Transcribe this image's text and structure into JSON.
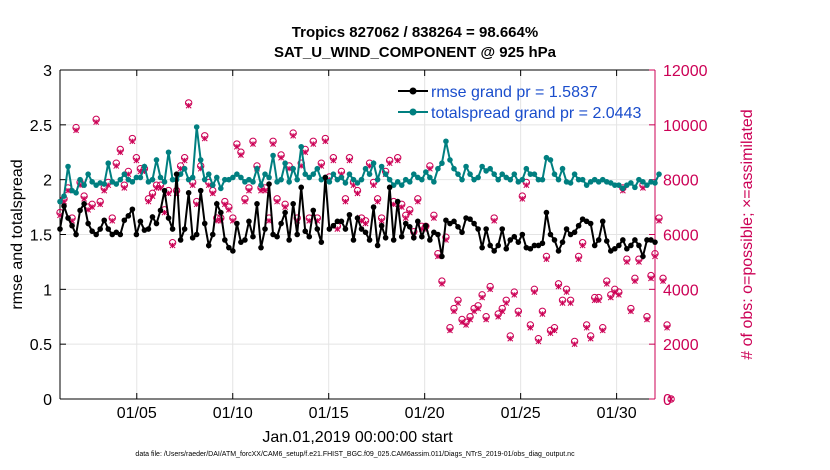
{
  "chart_data": {
    "type": "line",
    "title_line1": "Tropics 827062 / 838264 = 98.664%",
    "title_line2": "SAT_U_WIND_COMPONENT @ 925 hPa",
    "xlabel": "Jan.01,2019 00:00:00 start",
    "ylabel_left": "rmse and totalspread",
    "ylabel_right": "# of obs: o=possible; ×=assimilated",
    "xlim": [
      1,
      32
    ],
    "ylim_left": [
      0,
      3
    ],
    "ylim_right": [
      0,
      12000
    ],
    "x_ticks": [
      5,
      10,
      15,
      20,
      25,
      30
    ],
    "x_tick_labels": [
      "01/05",
      "01/10",
      "01/15",
      "01/20",
      "01/25",
      "01/30"
    ],
    "y_ticks_left": [
      "0",
      "0.5",
      "1",
      "1.5",
      "2",
      "2.5",
      "3"
    ],
    "y_ticks_right": [
      "0",
      "2000",
      "4000",
      "6000",
      "8000",
      "10000",
      "12000"
    ],
    "grid": true,
    "legend_position": "top-right",
    "colors": {
      "rmse": "#000000",
      "spread": "#007f80",
      "obs": "#cc0055"
    },
    "series": [
      {
        "name": "rmse grand pr = 1.5837",
        "axis": "left",
        "values": [
          1.55,
          1.76,
          1.65,
          1.58,
          1.5,
          1.72,
          1.78,
          1.6,
          1.53,
          1.5,
          1.55,
          1.63,
          1.55,
          1.5,
          1.52,
          1.5,
          1.63,
          1.67,
          1.73,
          1.5,
          1.62,
          1.54,
          1.55,
          1.66,
          1.6,
          1.72,
          1.9,
          1.65,
          1.55,
          2.05,
          1.45,
          1.55,
          1.88,
          1.47,
          1.5,
          1.9,
          1.6,
          1.4,
          1.5,
          1.78,
          1.7,
          1.45,
          1.38,
          1.35,
          1.6,
          1.43,
          1.45,
          1.62,
          1.48,
          1.78,
          1.38,
          1.55,
          1.96,
          1.5,
          1.48,
          1.6,
          1.7,
          1.45,
          1.78,
          1.5,
          1.93,
          1.53,
          1.48,
          1.72,
          1.55,
          1.43,
          2.02,
          1.55,
          1.58,
          1.62,
          1.62,
          1.55,
          1.68,
          1.45,
          1.65,
          1.55,
          1.52,
          1.45,
          1.75,
          1.4,
          1.58,
          1.47,
          1.93,
          1.45,
          1.8,
          1.48,
          1.6,
          1.57,
          1.47,
          1.62,
          1.48,
          1.58,
          1.45,
          1.52,
          1.5,
          1.3,
          1.63,
          1.6,
          1.62,
          1.57,
          1.52,
          1.65,
          1.64,
          1.6,
          1.55,
          1.38,
          1.55,
          1.4,
          1.35,
          1.4,
          1.55,
          1.37,
          1.45,
          1.48,
          1.43,
          1.5,
          1.38,
          1.37,
          1.4,
          1.4,
          1.42,
          1.7,
          1.5,
          1.45,
          1.35,
          1.43,
          1.55,
          1.5,
          1.52,
          1.58,
          1.64,
          1.62,
          1.6,
          1.4,
          1.45,
          1.62,
          1.44,
          1.35,
          1.37,
          1.4,
          1.45,
          1.37,
          1.4,
          1.45,
          1.4,
          1.3,
          1.45,
          1.45,
          1.43
        ]
      },
      {
        "name": "totalspread grand pr = 2.0443",
        "axis": "left",
        "values": [
          1.8,
          1.85,
          2.12,
          1.9,
          1.88,
          2.0,
          1.95,
          2.05,
          1.98,
          1.95,
          1.97,
          1.96,
          2.15,
          1.98,
          1.96,
          2.0,
          2.05,
          2.0,
          1.98,
          2.02,
          2.02,
          2.12,
          1.98,
          2.0,
          2.18,
          2.02,
          1.98,
          2.25,
          2.0,
          2.0,
          2.05,
          2.1,
          2.0,
          2.02,
          2.48,
          2.18,
          2.0,
          2.05,
          1.95,
          2.02,
          1.92,
          2.0,
          2.0,
          2.02,
          2.05,
          2.02,
          1.98,
          2.0,
          1.98,
          2.1,
          1.95,
          2.05,
          2.02,
          2.22,
          1.98,
          2.0,
          2.15,
          1.98,
          2.1,
          2.0,
          2.3,
          2.05,
          2.02,
          2.05,
          2.1,
          2.0,
          2.02,
          1.98,
          2.05,
          2.0,
          2.02,
          1.97,
          2.05,
          2.0,
          1.97,
          2.0,
          2.1,
          2.05,
          2.15,
          2.0,
          2.12,
          2.05,
          2.0,
          1.95,
          1.98,
          1.95,
          2.0,
          1.98,
          2.05,
          2.02,
          2.0,
          2.07,
          2.02,
          1.98,
          2.1,
          2.15,
          2.35,
          2.18,
          2.1,
          2.05,
          2.0,
          2.12,
          2.05,
          2.0,
          2.02,
          2.12,
          2.08,
          2.1,
          2.05,
          2.0,
          2.05,
          2.02,
          2.0,
          2.05,
          1.98,
          2.0,
          2.1,
          2.05,
          2.05,
          2.0,
          2.0,
          2.2,
          2.18,
          2.05,
          2.0,
          2.1,
          1.98,
          1.97,
          2.05,
          2.0,
          2.0,
          1.95,
          1.98,
          2.0,
          1.98,
          2.0,
          1.98,
          1.97,
          1.95,
          1.95,
          1.92,
          1.95,
          1.97,
          1.93,
          2.0,
          1.98,
          1.95,
          1.98,
          1.97,
          2.05
        ]
      },
      {
        "name": "# of obs possible (o)",
        "axis": "right",
        "values": [
          6800,
          7300,
          7700,
          6600,
          9900,
          7900,
          7400,
          7000,
          7100,
          10200,
          7200,
          7700,
          7900,
          6600,
          8600,
          9100,
          7800,
          8300,
          9500,
          8800,
          8400,
          8400,
          7300,
          7500,
          7800,
          7800,
          6900,
          7600,
          5700,
          7600,
          8500,
          8800,
          10800,
          7900,
          7200,
          8500,
          9600,
          7900,
          7600,
          6600,
          6600,
          7200,
          7000,
          6600,
          9300,
          9000,
          7300,
          7700,
          9400,
          8500,
          7700,
          7700,
          6600,
          9400,
          7300,
          8900,
          7100,
          8500,
          9700,
          6600,
          8600,
          9100,
          6600,
          9400,
          6600,
          8600,
          9500,
          8100,
          8800,
          6300,
          8300,
          7300,
          8800,
          7900,
          7600,
          6600,
          6500,
          8600,
          7900,
          7300,
          6600,
          8300,
          8700,
          7200,
          8800,
          7100,
          6700,
          6900,
          6100,
          7300,
          6300,
          6300,
          8500,
          6700,
          5300,
          4300,
          5900,
          2600,
          3300,
          3600,
          2900,
          2800,
          3000,
          3300,
          3400,
          3800,
          3000,
          4100,
          6600,
          3100,
          3300,
          3600,
          2300,
          3900,
          3200,
          7400,
          7900,
          2700,
          4000,
          2200,
          3200,
          5200,
          2500,
          2600,
          4200,
          3600,
          4000,
          3600,
          2100,
          5200,
          5700,
          2700,
          2300,
          3700,
          3700,
          2600,
          4300,
          3800,
          4000,
          3900,
          7700,
          5100,
          3300,
          4400,
          5100,
          7800,
          3000,
          4500,
          5300,
          6600,
          4400,
          2700,
          0
        ]
      },
      {
        "name": "# of obs assimilated (×)",
        "axis": "right",
        "values": [
          6700,
          7200,
          7600,
          6500,
          9800,
          7800,
          7300,
          6900,
          7000,
          10100,
          7100,
          7600,
          7800,
          6500,
          8500,
          9000,
          7700,
          8200,
          9400,
          8700,
          8300,
          8300,
          7200,
          7400,
          7700,
          7700,
          6800,
          7500,
          5600,
          7500,
          8400,
          8700,
          10700,
          7800,
          7100,
          8400,
          9500,
          7800,
          7500,
          6500,
          6500,
          7100,
          6900,
          6500,
          9200,
          8900,
          7200,
          7600,
          9300,
          8400,
          7600,
          7600,
          6500,
          9300,
          7200,
          8800,
          7000,
          8400,
          9600,
          6500,
          8500,
          9000,
          6500,
          9300,
          6500,
          8500,
          9400,
          8000,
          8700,
          6200,
          8200,
          7200,
          8700,
          7800,
          7500,
          6500,
          6400,
          8500,
          7800,
          7200,
          6500,
          8200,
          8600,
          7100,
          8700,
          7000,
          6600,
          6800,
          6000,
          7200,
          6200,
          6200,
          8400,
          6600,
          5200,
          4200,
          5800,
          2500,
          3200,
          3500,
          2800,
          2700,
          2900,
          3200,
          3300,
          3700,
          2900,
          4000,
          6500,
          3000,
          3200,
          3500,
          2200,
          3800,
          3100,
          7300,
          7800,
          2600,
          3900,
          2100,
          3100,
          5100,
          2400,
          2500,
          4100,
          3500,
          3900,
          3500,
          2000,
          5100,
          5600,
          2600,
          2200,
          3600,
          3600,
          2500,
          4200,
          3700,
          3900,
          3800,
          7600,
          5000,
          3200,
          4300,
          5000,
          7700,
          2900,
          4400,
          5200,
          6500,
          4300,
          2600,
          0
        ]
      }
    ]
  },
  "footer_text": "data file: /Users/raeder/DAI/ATM_forcXX/CAM6_setup/f.e21.FHIST_BGC.f09_025.CAM6assim.011/Diags_NTrS_2019-01/obs_diag_output.nc"
}
